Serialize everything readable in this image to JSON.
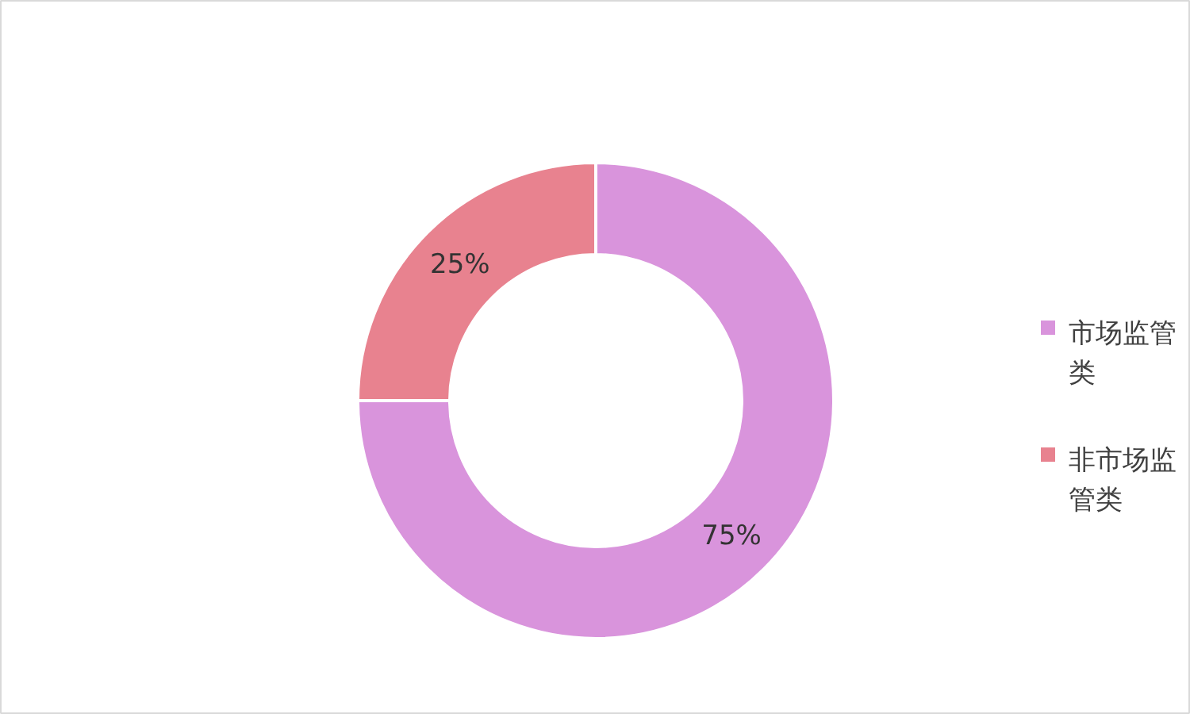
{
  "chart_data": {
    "type": "donut",
    "categories": [
      "市场监管类",
      "非市场监管类"
    ],
    "values": [
      75,
      25
    ],
    "colors": [
      "#d994dc",
      "#e8828f"
    ],
    "value_labels": [
      "75%",
      "25%"
    ],
    "legend": "right"
  }
}
